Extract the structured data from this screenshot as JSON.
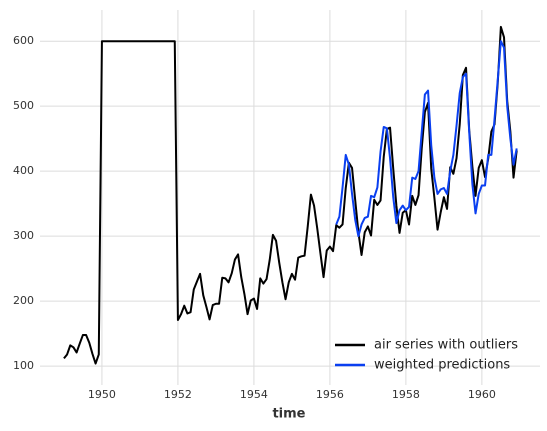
{
  "chart_data": {
    "type": "line",
    "x_label": "time",
    "xlim": [
      1948.37,
      1961.53
    ],
    "xticks": [
      1950,
      1952,
      1954,
      1956,
      1958,
      1960
    ],
    "ylim": [
      71,
      648
    ],
    "yticks": [
      100,
      200,
      300,
      400,
      500,
      600
    ],
    "grid": true,
    "legend": "lower right",
    "series": [
      {
        "name": "air series with outliers",
        "color": "#000000",
        "x": [
          1949.0,
          1949.083,
          1949.167,
          1949.25,
          1949.333,
          1949.417,
          1949.5,
          1949.583,
          1949.667,
          1949.75,
          1949.833,
          1949.917,
          1950.0,
          1950.083,
          1950.167,
          1950.25,
          1950.333,
          1950.417,
          1950.5,
          1950.583,
          1950.667,
          1950.75,
          1950.833,
          1950.917,
          1951.0,
          1951.083,
          1951.167,
          1951.25,
          1951.333,
          1951.417,
          1951.5,
          1951.583,
          1951.667,
          1951.75,
          1951.833,
          1951.917,
          1952.0,
          1952.083,
          1952.167,
          1952.25,
          1952.333,
          1952.417,
          1952.5,
          1952.583,
          1952.667,
          1952.75,
          1952.833,
          1952.917,
          1953.0,
          1953.083,
          1953.167,
          1953.25,
          1953.333,
          1953.417,
          1953.5,
          1953.583,
          1953.667,
          1953.75,
          1953.833,
          1953.917,
          1954.0,
          1954.083,
          1954.167,
          1954.25,
          1954.333,
          1954.417,
          1954.5,
          1954.583,
          1954.667,
          1954.75,
          1954.833,
          1954.917,
          1955.0,
          1955.083,
          1955.167,
          1955.25,
          1955.333,
          1955.417,
          1955.5,
          1955.583,
          1955.667,
          1955.75,
          1955.833,
          1955.917,
          1956.0,
          1956.083,
          1956.167,
          1956.25,
          1956.333,
          1956.417,
          1956.5,
          1956.583,
          1956.667,
          1956.75,
          1956.833,
          1956.917,
          1957.0,
          1957.083,
          1957.167,
          1957.25,
          1957.333,
          1957.417,
          1957.5,
          1957.583,
          1957.667,
          1957.75,
          1957.833,
          1957.917,
          1958.0,
          1958.083,
          1958.167,
          1958.25,
          1958.333,
          1958.417,
          1958.5,
          1958.583,
          1958.667,
          1958.75,
          1958.833,
          1958.917,
          1959.0,
          1959.083,
          1959.167,
          1959.25,
          1959.333,
          1959.417,
          1959.5,
          1959.583,
          1959.667,
          1959.75,
          1959.833,
          1959.917,
          1960.0,
          1960.083,
          1960.167,
          1960.25,
          1960.333,
          1960.417,
          1960.5,
          1960.583,
          1960.667,
          1960.75,
          1960.833,
          1960.917
        ],
        "values": [
          112,
          118,
          132,
          129,
          121,
          135,
          148,
          148,
          136,
          119,
          104,
          118,
          600,
          600,
          600,
          600,
          600,
          600,
          600,
          600,
          600,
          600,
          600,
          600,
          600,
          600,
          600,
          600,
          600,
          600,
          600,
          600,
          600,
          600,
          600,
          600,
          171,
          180,
          193,
          181,
          183,
          218,
          230,
          242,
          209,
          191,
          172,
          194,
          196,
          196,
          236,
          235,
          229,
          243,
          264,
          272,
          237,
          211,
          180,
          201,
          204,
          188,
          235,
          227,
          234,
          264,
          302,
          293,
          259,
          229,
          203,
          229,
          242,
          233,
          267,
          269,
          270,
          315,
          364,
          347,
          312,
          274,
          237,
          278,
          284,
          277,
          317,
          313,
          318,
          374,
          413,
          405,
          355,
          306,
          271,
          306,
          315,
          301,
          356,
          348,
          355,
          422,
          465,
          467,
          404,
          347,
          305,
          336,
          340,
          318,
          362,
          348,
          363,
          435,
          491,
          505,
          404,
          359,
          310,
          337,
          360,
          342,
          406,
          396,
          420,
          472,
          548,
          559,
          463,
          407,
          362,
          405,
          417,
          391,
          419,
          461,
          472,
          535,
          622,
          606,
          508,
          461,
          390,
          432
        ]
      },
      {
        "name": "weighted predictions",
        "color": "#0a3ff0",
        "x": [
          1956.167,
          1956.25,
          1956.333,
          1956.417,
          1956.5,
          1956.583,
          1956.667,
          1956.75,
          1956.833,
          1956.917,
          1957.0,
          1957.083,
          1957.167,
          1957.25,
          1957.333,
          1957.417,
          1957.5,
          1957.583,
          1957.667,
          1957.75,
          1957.833,
          1957.917,
          1958.0,
          1958.083,
          1958.167,
          1958.25,
          1958.333,
          1958.417,
          1958.5,
          1958.583,
          1958.667,
          1958.75,
          1958.833,
          1958.917,
          1959.0,
          1959.083,
          1959.167,
          1959.25,
          1959.333,
          1959.417,
          1959.5,
          1959.583,
          1959.667,
          1959.75,
          1959.833,
          1959.917,
          1960.0,
          1960.083,
          1960.167,
          1960.25,
          1960.333,
          1960.417,
          1960.5,
          1960.583,
          1960.667,
          1960.75,
          1960.833,
          1960.917
        ],
        "values": [
          318,
          330,
          375,
          425,
          410,
          365,
          325,
          300,
          318,
          328,
          330,
          362,
          360,
          375,
          430,
          468,
          466,
          420,
          360,
          320,
          340,
          347,
          340,
          345,
          390,
          388,
          400,
          460,
          518,
          524,
          440,
          390,
          365,
          372,
          374,
          365,
          400,
          425,
          470,
          520,
          545,
          550,
          460,
          380,
          335,
          365,
          378,
          378,
          425,
          425,
          480,
          540,
          600,
          590,
          500,
          450,
          410,
          435
        ]
      }
    ]
  }
}
